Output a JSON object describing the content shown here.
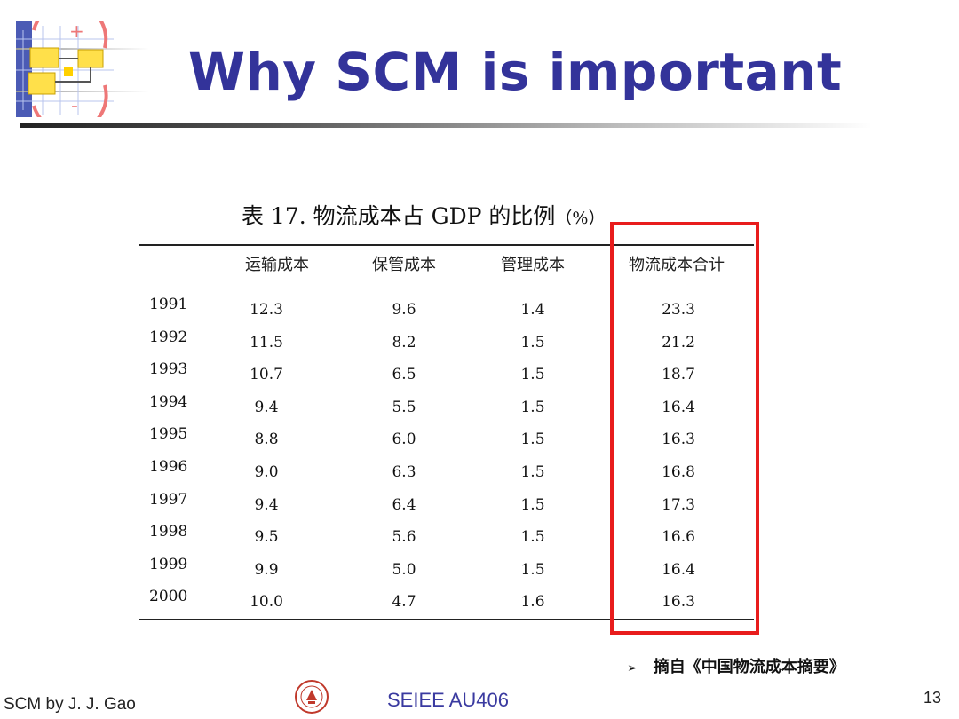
{
  "slide": {
    "title": "Why SCM is important",
    "table_caption": "表 17.  物流成本占 GDP 的比例",
    "table_caption_unit": "（%）",
    "columns": [
      "",
      "运输成本",
      "保管成本",
      "管理成本",
      "物流成本合计"
    ],
    "rows": [
      [
        "1991",
        "12.3",
        "9.6",
        "1.4",
        "23.3"
      ],
      [
        "1992",
        "11.5",
        "8.2",
        "1.5",
        "21.2"
      ],
      [
        "1993",
        "10.7",
        "6.5",
        "1.5",
        "18.7"
      ],
      [
        "1994",
        "9.4",
        "5.5",
        "1.5",
        "16.4"
      ],
      [
        "1995",
        "8.8",
        "6.0",
        "1.5",
        "16.3"
      ],
      [
        "1996",
        "9.0",
        "6.3",
        "1.5",
        "16.8"
      ],
      [
        "1997",
        "9.4",
        "6.4",
        "1.5",
        "17.3"
      ],
      [
        "1998",
        "9.5",
        "5.6",
        "1.5",
        "16.6"
      ],
      [
        "1999",
        "9.9",
        "5.0",
        "1.5",
        "16.4"
      ],
      [
        "2000",
        "10.0",
        "4.7",
        "1.6",
        "16.3"
      ]
    ],
    "highlight_color": "#e81c1c",
    "source_bullet": "➢",
    "source_text": "摘自《中国物流成本摘要》"
  },
  "footer": {
    "left": "SCM by J. J. Gao",
    "center": "SEIEE AU406",
    "page": "13"
  },
  "colors": {
    "title": "#33339a",
    "footer_center": "#3a3aa0"
  },
  "icons": {
    "logo": "scm-logo-icon",
    "seal": "university-seal-icon"
  }
}
